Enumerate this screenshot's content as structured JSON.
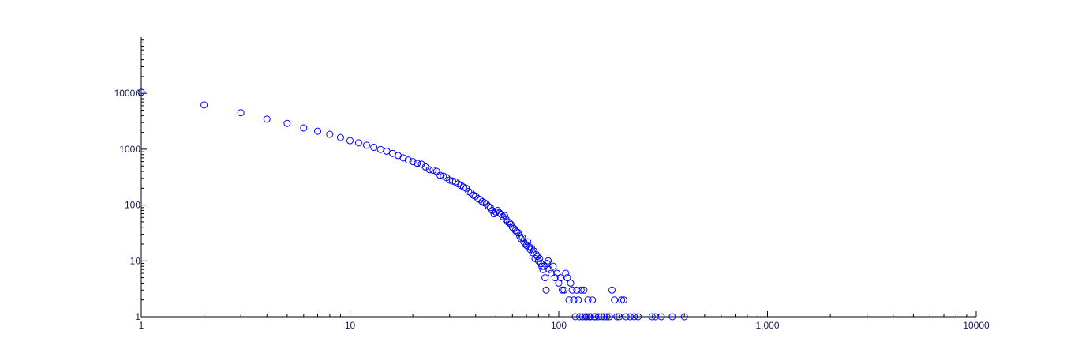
{
  "chart_data": {
    "type": "scatter",
    "title": "",
    "xlabel": "",
    "ylabel": "",
    "x_scale": "log",
    "y_scale": "log",
    "xlim": [
      1,
      10000
    ],
    "ylim": [
      1,
      100000
    ],
    "grid": false,
    "legend": "none",
    "marker_color": "#0000ff",
    "marker": "open-circle",
    "x_tick_labels": [
      {
        "value": 1,
        "label": "1"
      },
      {
        "value": 10,
        "label": "10"
      },
      {
        "value": 100,
        "label": "100"
      },
      {
        "value": 1000,
        "label": "1,000"
      },
      {
        "value": 10000,
        "label": "10000"
      }
    ],
    "y_tick_labels": [
      {
        "value": 1,
        "label": "1"
      },
      {
        "value": 10,
        "label": "10"
      },
      {
        "value": 100,
        "label": "100"
      },
      {
        "value": 1000,
        "label": "1000"
      },
      {
        "value": 10000,
        "label": "10000"
      }
    ],
    "series": [
      {
        "points": [
          [
            1,
            10500
          ],
          [
            2,
            6200
          ],
          [
            3,
            4500
          ],
          [
            4,
            3450
          ],
          [
            5,
            2900
          ],
          [
            6,
            2400
          ],
          [
            7,
            2100
          ],
          [
            8,
            1850
          ],
          [
            9,
            1620
          ],
          [
            10,
            1420
          ],
          [
            11,
            1300
          ],
          [
            12,
            1180
          ],
          [
            13,
            1080
          ],
          [
            14,
            990
          ],
          [
            15,
            920
          ],
          [
            16,
            840
          ],
          [
            17,
            770
          ],
          [
            18,
            700
          ],
          [
            19,
            640
          ],
          [
            20,
            600
          ],
          [
            21,
            560
          ],
          [
            22,
            540
          ],
          [
            23,
            480
          ],
          [
            24,
            430
          ],
          [
            25,
            420
          ],
          [
            26,
            400
          ],
          [
            27,
            340
          ],
          [
            28,
            330
          ],
          [
            29,
            310
          ],
          [
            30,
            280
          ],
          [
            31,
            270
          ],
          [
            32,
            260
          ],
          [
            33,
            240
          ],
          [
            34,
            225
          ],
          [
            35,
            210
          ],
          [
            36,
            200
          ],
          [
            37,
            175
          ],
          [
            38,
            165
          ],
          [
            39,
            150
          ],
          [
            40,
            145
          ],
          [
            41,
            130
          ],
          [
            42,
            125
          ],
          [
            43,
            115
          ],
          [
            44,
            110
          ],
          [
            45,
            105
          ],
          [
            46,
            95
          ],
          [
            47,
            90
          ],
          [
            48,
            80
          ],
          [
            49,
            70
          ],
          [
            50,
            75
          ],
          [
            51,
            80
          ],
          [
            52,
            72
          ],
          [
            53,
            68
          ],
          [
            54,
            62
          ],
          [
            55,
            65
          ],
          [
            56,
            55
          ],
          [
            57,
            50
          ],
          [
            58,
            48
          ],
          [
            59,
            45
          ],
          [
            60,
            40
          ],
          [
            61,
            38
          ],
          [
            62,
            35
          ],
          [
            63,
            33
          ],
          [
            64,
            32
          ],
          [
            65,
            28
          ],
          [
            66,
            25
          ],
          [
            67,
            26
          ],
          [
            68,
            22
          ],
          [
            69,
            20
          ],
          [
            70,
            19
          ],
          [
            71,
            22
          ],
          [
            72,
            18
          ],
          [
            73,
            16
          ],
          [
            74,
            17
          ],
          [
            75,
            14
          ],
          [
            76,
            15
          ],
          [
            77,
            11
          ],
          [
            78,
            13
          ],
          [
            79,
            12
          ],
          [
            80,
            10
          ],
          [
            81,
            11
          ],
          [
            82,
            9
          ],
          [
            83,
            8
          ],
          [
            84,
            7
          ],
          [
            85,
            8
          ],
          [
            86,
            5
          ],
          [
            87,
            3
          ],
          [
            88,
            9
          ],
          [
            89,
            10
          ],
          [
            90,
            7
          ],
          [
            92,
            6
          ],
          [
            94,
            8
          ],
          [
            96,
            5
          ],
          [
            98,
            6
          ],
          [
            100,
            4
          ],
          [
            102,
            5
          ],
          [
            104,
            3
          ],
          [
            106,
            3
          ],
          [
            108,
            6
          ],
          [
            110,
            5
          ],
          [
            112,
            2
          ],
          [
            114,
            4
          ],
          [
            116,
            3
          ],
          [
            118,
            2
          ],
          [
            120,
            1
          ],
          [
            122,
            3
          ],
          [
            124,
            2
          ],
          [
            126,
            1
          ],
          [
            128,
            3
          ],
          [
            130,
            1
          ],
          [
            132,
            3
          ],
          [
            134,
            1
          ],
          [
            136,
            1
          ],
          [
            138,
            2
          ],
          [
            140,
            1
          ],
          [
            142,
            1
          ],
          [
            145,
            2
          ],
          [
            148,
            1
          ],
          [
            150,
            1
          ],
          [
            155,
            1
          ],
          [
            160,
            1
          ],
          [
            165,
            1
          ],
          [
            170,
            1
          ],
          [
            175,
            1
          ],
          [
            180,
            3
          ],
          [
            185,
            2
          ],
          [
            190,
            1
          ],
          [
            195,
            1
          ],
          [
            200,
            2
          ],
          [
            205,
            2
          ],
          [
            210,
            1
          ],
          [
            220,
            1
          ],
          [
            230,
            1
          ],
          [
            240,
            1
          ],
          [
            280,
            1
          ],
          [
            290,
            1
          ],
          [
            310,
            1
          ],
          [
            350,
            1
          ],
          [
            400,
            1
          ]
        ]
      }
    ]
  }
}
